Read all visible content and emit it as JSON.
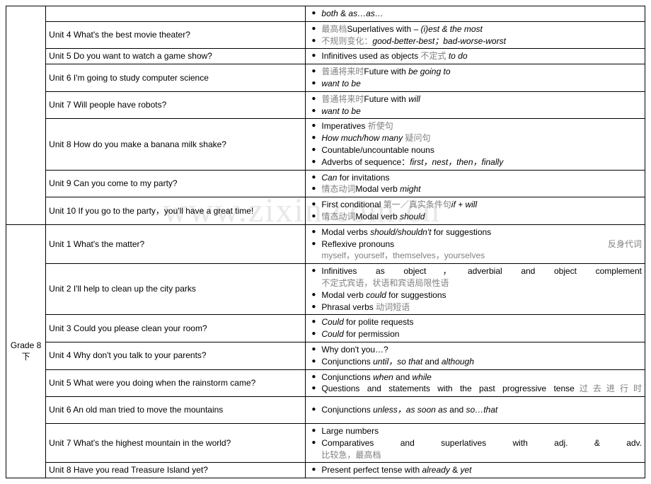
{
  "watermark": "www.zixin.com.cn",
  "colors": {
    "border": "#000000",
    "text": "#000000",
    "cn_gray": "#808080",
    "watermark": "#e8e8e8",
    "background": "#ffffff"
  },
  "fonts": {
    "base_size": 12,
    "watermark_size": 48
  },
  "grade_labels": {
    "g8a": "",
    "g8b_line1": "Grade 8",
    "g8b_line2": "下"
  },
  "rows": [
    {
      "section": "g8a",
      "unit": "",
      "topics": [
        {
          "pre": "",
          "it": "both",
          "post": " & ",
          "it2": "as…as…"
        }
      ]
    },
    {
      "section": "g8a",
      "unit": "Unit 4 What's the best movie theater?",
      "topics": [
        {
          "pre_cn": "最高档",
          "pre": "Superlatives with – ",
          "it": "(i)est & the most"
        },
        {
          "pre_cn": "不规则变化：",
          "it": "good-better-best；bad-worse-worst"
        }
      ]
    },
    {
      "section": "g8a",
      "unit": "Unit 5 Do you want to watch a game show?",
      "topics": [
        {
          "pre": "Infinitives used as objects ",
          "pre_cn2": "不定式 ",
          "it": "to do"
        }
      ]
    },
    {
      "section": "g8a",
      "unit": "Unit 6 I'm going to study computer science",
      "topics": [
        {
          "pre_cn": "普通将来时",
          "pre": "Future with ",
          "it": "be going to"
        },
        {
          "it": "want to be"
        }
      ]
    },
    {
      "section": "g8a",
      "unit": "Unit 7 Will people have robots?",
      "topics": [
        {
          "pre_cn": "普通将来时",
          "pre": "Future with ",
          "it": "will"
        },
        {
          "it": "want to be"
        }
      ]
    },
    {
      "section": "g8a",
      "unit": "Unit 8 How do you make a banana milk shake?",
      "topics": [
        {
          "pre": "Imperatives ",
          "pre_cn2": "祈使句"
        },
        {
          "it": "How much/how many ",
          "post_cn": "疑问句"
        },
        {
          "pre": "Countable/uncountable nouns"
        },
        {
          "pre": "Adverbs of sequence：",
          "it": "first，nest，then，finally"
        }
      ]
    },
    {
      "section": "g8a",
      "unit": "Unit 9 Can you come to my party?",
      "topics": [
        {
          "it": "Can",
          "post": " for invitations"
        },
        {
          "pre_cn": "情态动词",
          "pre": "Modal verb ",
          "it": "might"
        }
      ]
    },
    {
      "section": "g8a",
      "unit_justify": true,
      "unit": "Unit 10 If you go to the party，you'll have a great time!",
      "topics": [
        {
          "pre": "First conditional ",
          "pre_cn2": "第一／真实条件句",
          "it": "if + will"
        },
        {
          "pre_cn": "情态动词",
          "pre": "Modal verb ",
          "it": "should"
        }
      ]
    },
    {
      "section": "g8b",
      "unit": "Unit 1 What's the matter?",
      "topics": [
        {
          "pre": "Modal verbs ",
          "it": "should/shouldn't",
          "post": " for suggestions"
        },
        {
          "pre_justify": "Reflexive pronouns",
          "post_cn": "反身代词",
          "next_cn": "myself，yourself，themselves，yourselves"
        }
      ]
    },
    {
      "section": "g8b",
      "unit": "Unit 2 I'll help to clean up the city parks",
      "topics": [
        {
          "pre_justify": "Infinitives as object，adverbial and object complement",
          "next_cn": "不定式宾语，状语和宾语局限性语"
        },
        {
          "pre": "Modal verb ",
          "it": "could",
          "post": " for suggestions"
        },
        {
          "pre": "Phrasal verbs ",
          "pre_cn2": "动词短语"
        }
      ]
    },
    {
      "section": "g8b",
      "unit": "Unit 3 Could you please clean your room?",
      "topics": [
        {
          "it": "Could",
          "post": " for polite requests"
        },
        {
          "it": "Could",
          "post": " for permission"
        }
      ]
    },
    {
      "section": "g8b",
      "unit": "Unit 4 Why don't you talk to your parents?",
      "topics": [
        {
          "pre": "Why don't you…?"
        },
        {
          "pre": "Conjunctions ",
          "it": "until，so that",
          "post": " and ",
          "it2": "although"
        }
      ]
    },
    {
      "section": "g8b",
      "unit_justify": true,
      "unit": "Unit 5 What were you doing when the rainstorm came?",
      "topics": [
        {
          "pre": "Conjunctions ",
          "it": "when",
          "post": " and ",
          "it2": "while"
        },
        {
          "pre_justify": "Questions and statements with the past progressive tense",
          "post_cn2": "过去进行时"
        }
      ]
    },
    {
      "section": "g8b",
      "unit": "Unit 6 An old man tried to move the mountains",
      "topics_pad": true,
      "topics": [
        {
          "pre": "Conjunctions ",
          "it": "unless，as soon as",
          "post": " and ",
          "it2": "so…that"
        }
      ]
    },
    {
      "section": "g8b",
      "unit": "Unit 7 What's the highest mountain in the world?",
      "topics": [
        {
          "pre": "Large numbers"
        },
        {
          "pre_justify": "Comparatives and superlatives with adj. & adv.",
          "next_cn": "比较急，最高档"
        }
      ]
    },
    {
      "section": "g8b",
      "unit": "Unit 8 Have you read Treasure Island yet?",
      "topics": [
        {
          "pre": "Present perfect tense with ",
          "it": "already",
          "post": " & ",
          "it2": "yet"
        }
      ]
    }
  ]
}
